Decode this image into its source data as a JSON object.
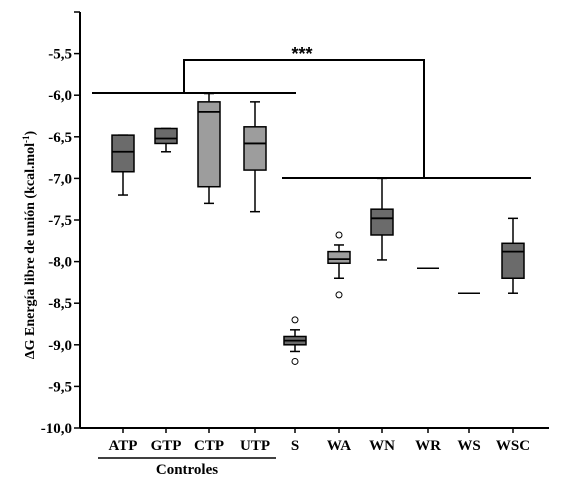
{
  "chart_data": {
    "type": "box",
    "ylabel": "ΔG Energía libre de unión (kcal.mol",
    "ylabel_sup": "-1",
    "ylabel_end": ")",
    "ylim": [
      -10.0,
      -5.0
    ],
    "y_ticks": [
      -5.5,
      -6.0,
      -6.5,
      -7.0,
      -7.5,
      -8.0,
      -8.5,
      -9.0,
      -9.5,
      -10.0
    ],
    "y_tick_labels": [
      "-5,5",
      "-6,0",
      "-6,5",
      "-7,0",
      "-7,5",
      "-8,0",
      "-8,5",
      "-9,0",
      "-9,5",
      "-10,0"
    ],
    "categories": [
      "ATP",
      "GTP",
      "CTP",
      "UTP",
      "S",
      "WA",
      "WN",
      "WR",
      "WS",
      "WSC"
    ],
    "group_label": "Controles",
    "significance_label": "***",
    "colors": {
      "dark_box": "#6b6b6b",
      "light_box": "#9d9d9d",
      "line": "#000000"
    },
    "boxes": [
      {
        "category": "ATP",
        "whisker_low": -7.2,
        "q1": -6.92,
        "median": -6.68,
        "q3": -6.48,
        "whisker_high": -6.48,
        "outliers": [],
        "shade": "dark"
      },
      {
        "category": "GTP",
        "whisker_low": -6.68,
        "q1": -6.58,
        "median": -6.52,
        "q3": -6.4,
        "whisker_high": -6.4,
        "outliers": [],
        "shade": "dark"
      },
      {
        "category": "CTP",
        "whisker_low": -7.3,
        "q1": -7.1,
        "median": -6.2,
        "q3": -6.08,
        "whisker_high": -5.98,
        "outliers": [],
        "shade": "light"
      },
      {
        "category": "UTP",
        "whisker_low": -7.4,
        "q1": -6.9,
        "median": -6.58,
        "q3": -6.38,
        "whisker_high": -6.08,
        "outliers": [],
        "shade": "light"
      },
      {
        "category": "S",
        "whisker_low": -9.08,
        "q1": -9.0,
        "median": -8.95,
        "q3": -8.9,
        "whisker_high": -8.82,
        "outliers": [
          -8.7,
          -9.2
        ],
        "shade": "dark"
      },
      {
        "category": "WA",
        "whisker_low": -8.2,
        "q1": -8.02,
        "median": -7.97,
        "q3": -7.88,
        "whisker_high": -7.8,
        "outliers": [
          -7.68,
          -8.4
        ],
        "shade": "light"
      },
      {
        "category": "WN",
        "whisker_low": -7.98,
        "q1": -7.68,
        "median": -7.48,
        "q3": -7.37,
        "whisker_high": -7.0,
        "outliers": [],
        "shade": "dark"
      },
      {
        "category": "WR",
        "whisker_low": -8.08,
        "q1": -8.08,
        "median": -8.08,
        "q3": -8.08,
        "whisker_high": -8.08,
        "outliers": [],
        "shade": "dark"
      },
      {
        "category": "WS",
        "whisker_low": -8.38,
        "q1": -8.38,
        "median": -8.38,
        "q3": -8.38,
        "whisker_high": -8.38,
        "outliers": [],
        "shade": "dark"
      },
      {
        "category": "WSC",
        "whisker_low": -8.38,
        "q1": -8.2,
        "median": -7.88,
        "q3": -7.78,
        "whisker_high": -7.48,
        "outliers": [],
        "shade": "dark"
      }
    ],
    "grid": false,
    "legend": "none"
  }
}
